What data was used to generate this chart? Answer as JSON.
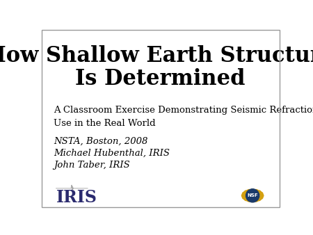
{
  "bg_color": "#ffffff",
  "title_line1": "How Shallow Earth Structure",
  "title_line2": "Is Determined",
  "subtitle_line1": "A Classroom Exercise Demonstrating Seismic Refraction",
  "subtitle_line2": "Use in the Real World",
  "body_line1": "NSTA, Boston, 2008",
  "body_line2": "Michael Hubenthal, IRIS",
  "body_line3": "John Taber, IRIS",
  "title_fontsize": 22,
  "subtitle_fontsize": 9.5,
  "body_fontsize": 9.5,
  "iris_text": "IRIS",
  "iris_color": "#2a2a6e",
  "border_color": "#999999"
}
